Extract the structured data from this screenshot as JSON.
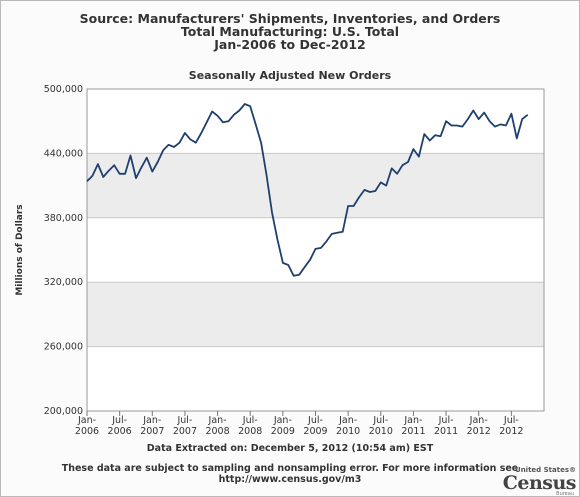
{
  "titles": [
    "Source: Manufacturers' Shipments, Inventories, and Orders",
    "Total Manufacturing: U.S. Total",
    "Jan-2006 to Dec-2012"
  ],
  "footer": {
    "extracted": "Data Extracted on: December 5, 2012 (10:54 am) EST",
    "note": "These data are subject to sampling and nonsampling error. For more information see",
    "url": "http://www.census.gov/m3"
  },
  "logo": {
    "top": "United States®",
    "name": "Census",
    "bottom": "Bureau"
  },
  "colors": {
    "line": "#1f3f6e",
    "grid": "#c9c9c9",
    "band": "#ececec",
    "plot_bg": "#ffffff"
  },
  "chart_data": {
    "type": "line",
    "title": "Seasonally Adjusted New Orders",
    "xlabel": "",
    "ylabel": "Millions of Dollars",
    "ylim": [
      200000,
      500000
    ],
    "xlim": [
      "2006-01",
      "2012-12"
    ],
    "grid": true,
    "yticks": [
      "200,000",
      "260,000",
      "320,000",
      "380,000",
      "440,000",
      "500,000"
    ],
    "xticks": [
      [
        "Jan-",
        "2006"
      ],
      [
        "Jul-",
        "2006"
      ],
      [
        "Jan-",
        "2007"
      ],
      [
        "Jul-",
        "2007"
      ],
      [
        "Jan-",
        "2008"
      ],
      [
        "Jul-",
        "2008"
      ],
      [
        "Jan-",
        "2009"
      ],
      [
        "Jul-",
        "2009"
      ],
      [
        "Jan-",
        "2010"
      ],
      [
        "Jul-",
        "2010"
      ],
      [
        "Jan-",
        "2011"
      ],
      [
        "Jul-",
        "2011"
      ],
      [
        "Jan-",
        "2012"
      ],
      [
        "Jul-",
        "2012"
      ]
    ],
    "series": [
      {
        "name": "",
        "values": [
          414000,
          419000,
          430000,
          418000,
          424000,
          429000,
          421000,
          421000,
          438000,
          417000,
          427000,
          436000,
          423000,
          432000,
          443000,
          448000,
          446000,
          450000,
          459000,
          453000,
          450000,
          459000,
          469000,
          479000,
          475000,
          469000,
          470000,
          476000,
          480000,
          486000,
          484000,
          467000,
          450000,
          420000,
          385000,
          360000,
          338000,
          336000,
          326000,
          327000,
          334000,
          341000,
          351000,
          352000,
          358000,
          365000,
          366000,
          367000,
          391000,
          391000,
          399000,
          406000,
          404000,
          405000,
          413000,
          410000,
          426000,
          421000,
          429000,
          432000,
          444000,
          437000,
          458000,
          452000,
          457000,
          456000,
          470000,
          466000,
          466000,
          465000,
          472000,
          480000,
          472000,
          478000,
          470000,
          465000,
          467000,
          466000,
          477000,
          454000,
          472000,
          476000
        ]
      }
    ]
  }
}
